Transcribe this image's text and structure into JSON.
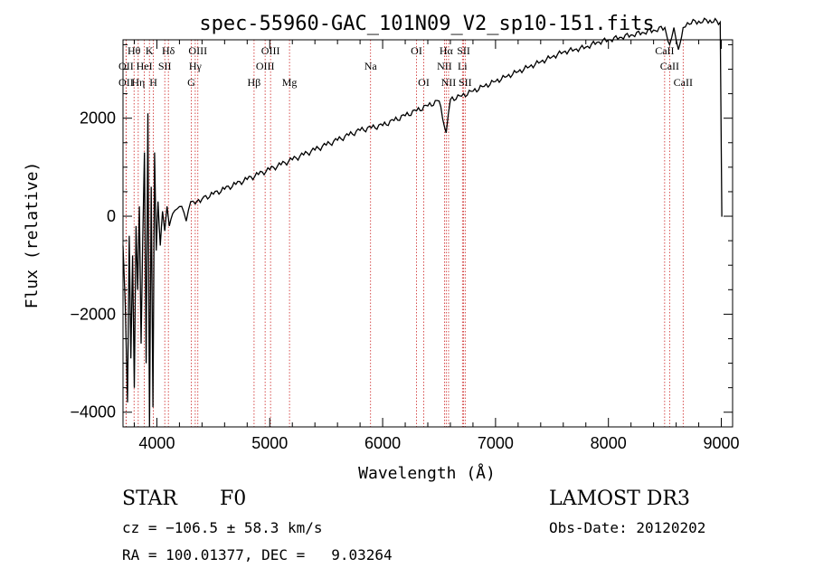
{
  "chart_data": {
    "type": "line",
    "title": "spec-55960-GAC_101N09_V2_sp10-151.fits",
    "xlabel": "Wavelength (Å)",
    "ylabel": "Flux (relative)",
    "xlim": [
      3700,
      9100
    ],
    "ylim": [
      -4300,
      3600
    ],
    "x_ticks": [
      4000,
      5000,
      6000,
      7000,
      8000,
      9000
    ],
    "y_ticks": [
      -4000,
      -2000,
      0,
      2000
    ],
    "x_tick_labels": [
      "4000",
      "5000",
      "6000",
      "7000",
      "8000",
      "9000"
    ],
    "y_tick_labels": [
      "−4000",
      "−2000",
      "0",
      "2000"
    ],
    "series": [
      {
        "name": "flux",
        "x": [
          3700,
          3720,
          3740,
          3755,
          3770,
          3785,
          3800,
          3815,
          3830,
          3845,
          3860,
          3875,
          3890,
          3905,
          3920,
          3935,
          3950,
          3965,
          3980,
          3995,
          4010,
          4030,
          4050,
          4070,
          4090,
          4110,
          4140,
          4180,
          4220,
          4260,
          4300,
          4340,
          4400,
          4500,
          4600,
          4700,
          4800,
          4900,
          5000,
          5100,
          5200,
          5300,
          5400,
          5500,
          5600,
          5700,
          5800,
          5900,
          6000,
          6100,
          6200,
          6300,
          6400,
          6500,
          6563,
          6600,
          6700,
          6800,
          6900,
          7000,
          7100,
          7200,
          7300,
          7400,
          7500,
          7600,
          7700,
          7800,
          7900,
          8000,
          8100,
          8200,
          8300,
          8400,
          8500,
          8542,
          8580,
          8620,
          8662,
          8700,
          8800,
          8900,
          8990,
          9000,
          9005,
          9010
        ],
        "y": [
          -600,
          -1800,
          -3800,
          -400,
          -2900,
          -800,
          -3500,
          -200,
          -1500,
          200,
          -2600,
          -500,
          1300,
          -3000,
          2100,
          -4300,
          600,
          -3900,
          1300,
          -700,
          300,
          -600,
          100,
          -300,
          200,
          -200,
          50,
          150,
          200,
          -100,
          300,
          250,
          350,
          450,
          550,
          650,
          750,
          850,
          950,
          1050,
          1150,
          1250,
          1350,
          1450,
          1550,
          1650,
          1750,
          1800,
          1850,
          1950,
          2050,
          2150,
          2250,
          2350,
          1700,
          2380,
          2450,
          2550,
          2650,
          2750,
          2850,
          2950,
          3050,
          3150,
          3250,
          3350,
          3400,
          3450,
          3550,
          3600,
          3650,
          3700,
          3750,
          3800,
          3850,
          3500,
          3850,
          3400,
          3850,
          3950,
          3980,
          4000,
          3960,
          1300,
          0,
          0
        ]
      }
    ],
    "spectral_lines": [
      {
        "label": "OII",
        "wavelength": 3727,
        "row": 2
      },
      {
        "label": "Hθ",
        "wavelength": 3798,
        "row": 0
      },
      {
        "label": "Hη",
        "wavelength": 3835,
        "row": 2
      },
      {
        "label": "OII",
        "wavelength": 3727,
        "row": 1
      },
      {
        "label": "HeI",
        "wavelength": 3889,
        "row": 1
      },
      {
        "label": "K",
        "wavelength": 3934,
        "row": 0
      },
      {
        "label": "H",
        "wavelength": 3969,
        "row": 2
      },
      {
        "label": "SII",
        "wavelength": 4070,
        "row": 1
      },
      {
        "label": "Hδ",
        "wavelength": 4102,
        "row": 0
      },
      {
        "label": "Hγ",
        "wavelength": 4340,
        "row": 1
      },
      {
        "label": "OIII",
        "wavelength": 4363,
        "row": 0
      },
      {
        "label": "G",
        "wavelength": 4305,
        "row": 2
      },
      {
        "label": "Hβ",
        "wavelength": 4861,
        "row": 2
      },
      {
        "label": "OIII",
        "wavelength": 4959,
        "row": 1
      },
      {
        "label": "OIII",
        "wavelength": 5007,
        "row": 0
      },
      {
        "label": "Mg",
        "wavelength": 5175,
        "row": 2
      },
      {
        "label": "Na",
        "wavelength": 5893,
        "row": 1
      },
      {
        "label": "OI",
        "wavelength": 6300,
        "row": 0
      },
      {
        "label": "OI",
        "wavelength": 6364,
        "row": 2
      },
      {
        "label": "NII",
        "wavelength": 6548,
        "row": 1
      },
      {
        "label": "Hα",
        "wavelength": 6563,
        "row": 0
      },
      {
        "label": "NII",
        "wavelength": 6584,
        "row": 2
      },
      {
        "label": "SII",
        "wavelength": 6717,
        "row": 0
      },
      {
        "label": "Li",
        "wavelength": 6707,
        "row": 1
      },
      {
        "label": "SII",
        "wavelength": 6731,
        "row": 2
      },
      {
        "label": "CaII",
        "wavelength": 8498,
        "row": 0
      },
      {
        "label": "CaII",
        "wavelength": 8542,
        "row": 1
      },
      {
        "label": "CaII",
        "wavelength": 8662,
        "row": 2
      }
    ]
  },
  "info": {
    "class_label": "STAR",
    "subclass_label": "F0",
    "survey": "LAMOST DR3",
    "cz": "cz = −106.5 ± 58.3 km/s",
    "obs_date": "Obs-Date: 20120202",
    "coords": "RA = 100.01377, DEC =   9.03264"
  },
  "colors": {
    "spectrum": "#000000",
    "line_marker": "#cc2222",
    "axes": "#000000"
  }
}
